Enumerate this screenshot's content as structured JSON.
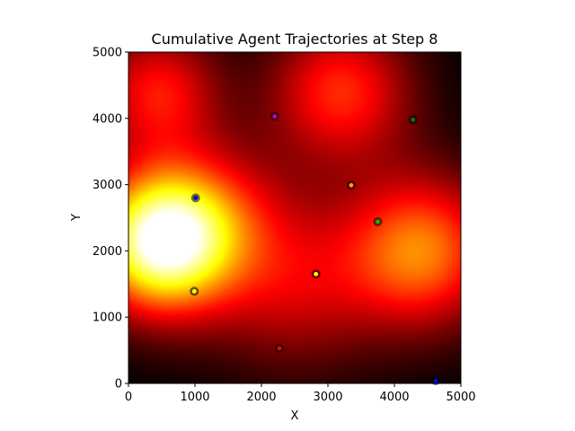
{
  "chart_data": {
    "type": "heatmap",
    "title": "Cumulative Agent Trajectories at Step 8",
    "xlabel": "X",
    "ylabel": "Y",
    "xlim": [
      0,
      5000
    ],
    "ylim": [
      0,
      5000
    ],
    "xticks": [
      0,
      1000,
      2000,
      3000,
      4000,
      5000
    ],
    "yticks": [
      0,
      1000,
      2000,
      3000,
      4000,
      5000
    ],
    "grid": false,
    "colormap": "hot",
    "background_field": [
      {
        "x": 500,
        "y": 2150,
        "intensity": 1.0,
        "spread": 750
      },
      {
        "x": 4400,
        "y": 2000,
        "intensity": 0.55,
        "spread": 800
      },
      {
        "x": 3200,
        "y": 4400,
        "intensity": 0.42,
        "spread": 750
      },
      {
        "x": 450,
        "y": 4400,
        "intensity": 0.38,
        "spread": 650
      },
      {
        "x": 2500,
        "y": 1500,
        "intensity": 0.28,
        "spread": 900
      },
      {
        "x": 1400,
        "y": 2600,
        "intensity": 0.22,
        "spread": 800
      }
    ],
    "agents": [
      {
        "x": 990,
        "y": 1390,
        "color": "#ffff00"
      },
      {
        "x": 2820,
        "y": 1650,
        "color": "#ffff00"
      },
      {
        "x": 2270,
        "y": 530,
        "color": "#ff0000"
      },
      {
        "x": 4620,
        "y": 40,
        "color": "#0000ff"
      },
      {
        "x": 1010,
        "y": 2800,
        "color": "#0000ff"
      },
      {
        "x": 2200,
        "y": 4030,
        "color": "#bf00bf"
      },
      {
        "x": 3350,
        "y": 2990,
        "color": "#ffa500"
      },
      {
        "x": 3750,
        "y": 2440,
        "color": "#00c000"
      },
      {
        "x": 4280,
        "y": 3980,
        "color": "#008000"
      }
    ]
  }
}
